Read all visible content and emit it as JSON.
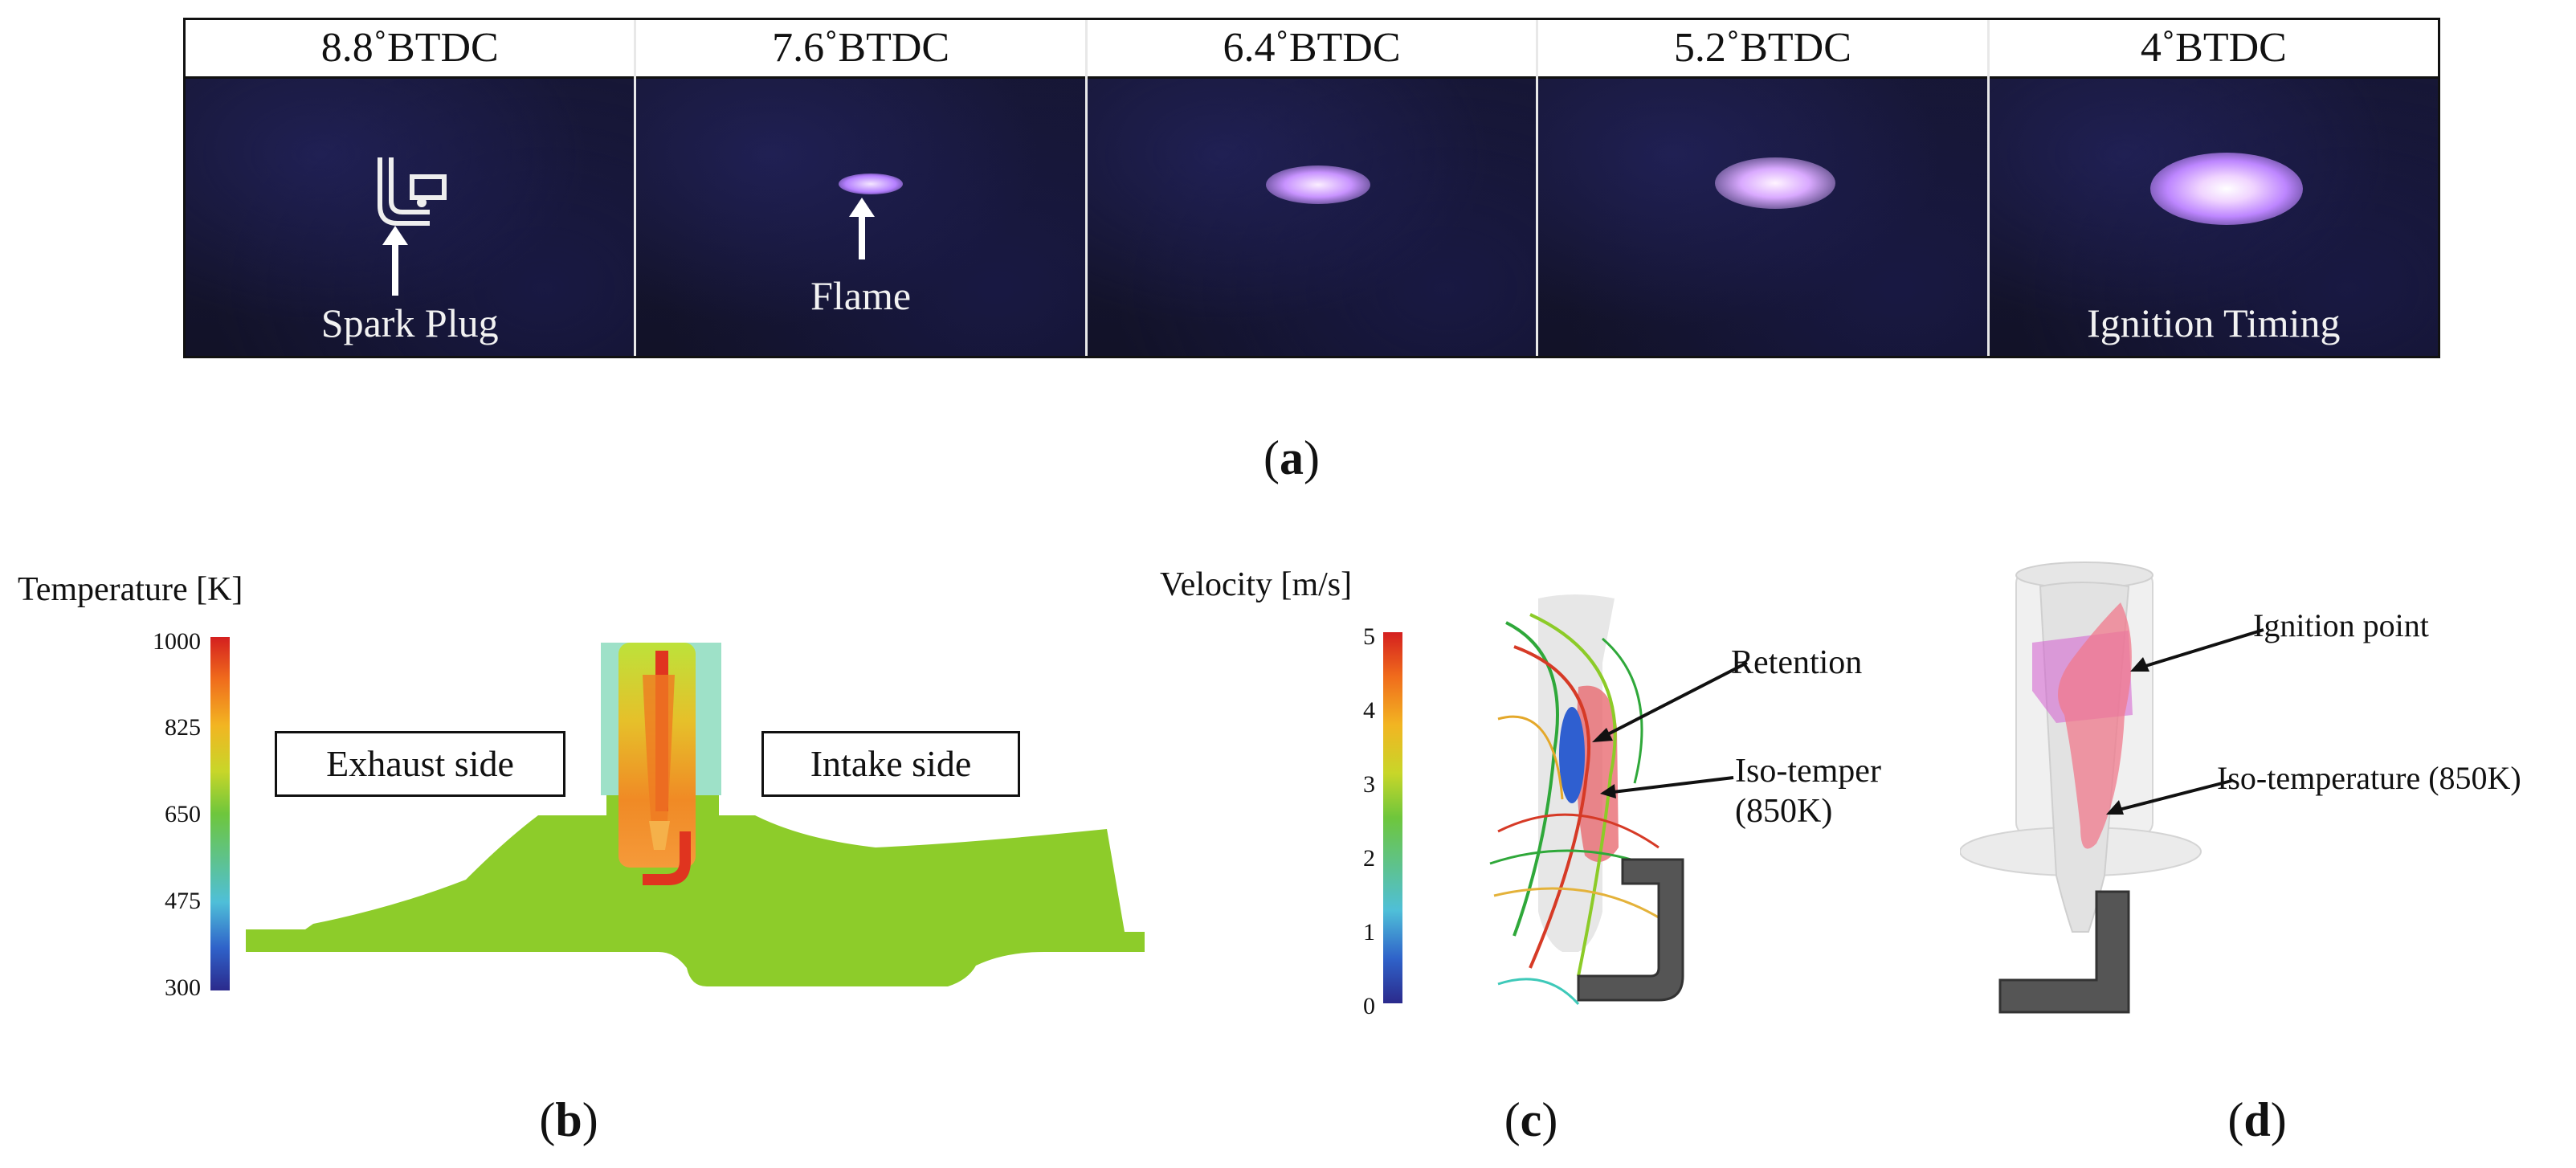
{
  "panel_a": {
    "frames": [
      {
        "header": "8.8˚BTDC",
        "caption": "Spark Plug"
      },
      {
        "header": "7.6˚BTDC",
        "caption": "Flame"
      },
      {
        "header": "6.4˚BTDC",
        "caption": ""
      },
      {
        "header": "5.2˚BTDC",
        "caption": ""
      },
      {
        "header": "4˚BTDC",
        "caption": "Ignition Timing"
      }
    ],
    "label_open": "(",
    "label_letter": "a",
    "label_close": ")"
  },
  "panel_b": {
    "colorbar_title": "Temperature [K]",
    "ticks": [
      "1000",
      "825",
      "650",
      "475",
      "300"
    ],
    "exhaust_label": "Exhaust side",
    "intake_label": "Intake side",
    "label_letter": "b"
  },
  "panel_c": {
    "colorbar_title": "Velocity [m/s]",
    "ticks": [
      "5",
      "4",
      "3",
      "2",
      "1",
      "0"
    ],
    "retention_label": "Retention",
    "iso_label_1": "Iso-temper",
    "iso_label_2": "(850K)",
    "label_letter": "c"
  },
  "panel_d": {
    "ignition_label": "Ignition point",
    "iso_label": "Iso-temperature (850K)",
    "label_letter": "d"
  },
  "colors": {
    "frame_background": "#14142a",
    "flame": "#c98cff",
    "mesh_green": "#8dcc2a",
    "hot": "#e0341f",
    "iso_surface": "#f07a8c",
    "ignition_zone": "#d45ccf"
  }
}
